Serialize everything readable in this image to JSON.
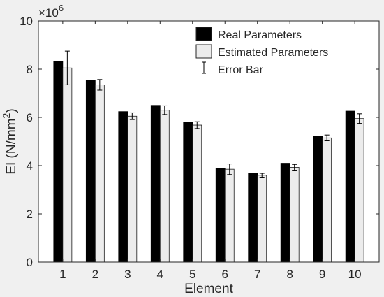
{
  "chart_data": {
    "type": "bar",
    "xlabel": "Element",
    "ylabel_main": "EI (N/mm",
    "ylabel_sup": "2",
    "ylabel_close": ")",
    "y_multiplier": "×10",
    "y_multiplier_exp": "6",
    "ylim": [
      0,
      10
    ],
    "yticks": [
      "0",
      "2",
      "4",
      "6",
      "8",
      "10"
    ],
    "categories": [
      "1",
      "2",
      "3",
      "4",
      "5",
      "6",
      "7",
      "8",
      "9",
      "10"
    ],
    "series": [
      {
        "name": "Real Parameters",
        "color": "#000000",
        "values": [
          8.32,
          7.54,
          6.24,
          6.5,
          5.8,
          3.9,
          3.68,
          4.1,
          5.22,
          6.26
        ]
      },
      {
        "name": "Estimated Parameters",
        "color": "#ececec",
        "values": [
          8.05,
          7.35,
          6.05,
          6.3,
          5.68,
          3.85,
          3.6,
          3.93,
          5.15,
          5.95
        ],
        "error": [
          0.7,
          0.22,
          0.14,
          0.18,
          0.14,
          0.22,
          0.08,
          0.12,
          0.12,
          0.2
        ]
      }
    ],
    "legend": {
      "position": "top-right",
      "entries": [
        "Real Parameters",
        "Estimated Parameters",
        "Error Bar"
      ]
    },
    "grid": false,
    "axis_color": "#262626",
    "background": "#ffffff"
  }
}
